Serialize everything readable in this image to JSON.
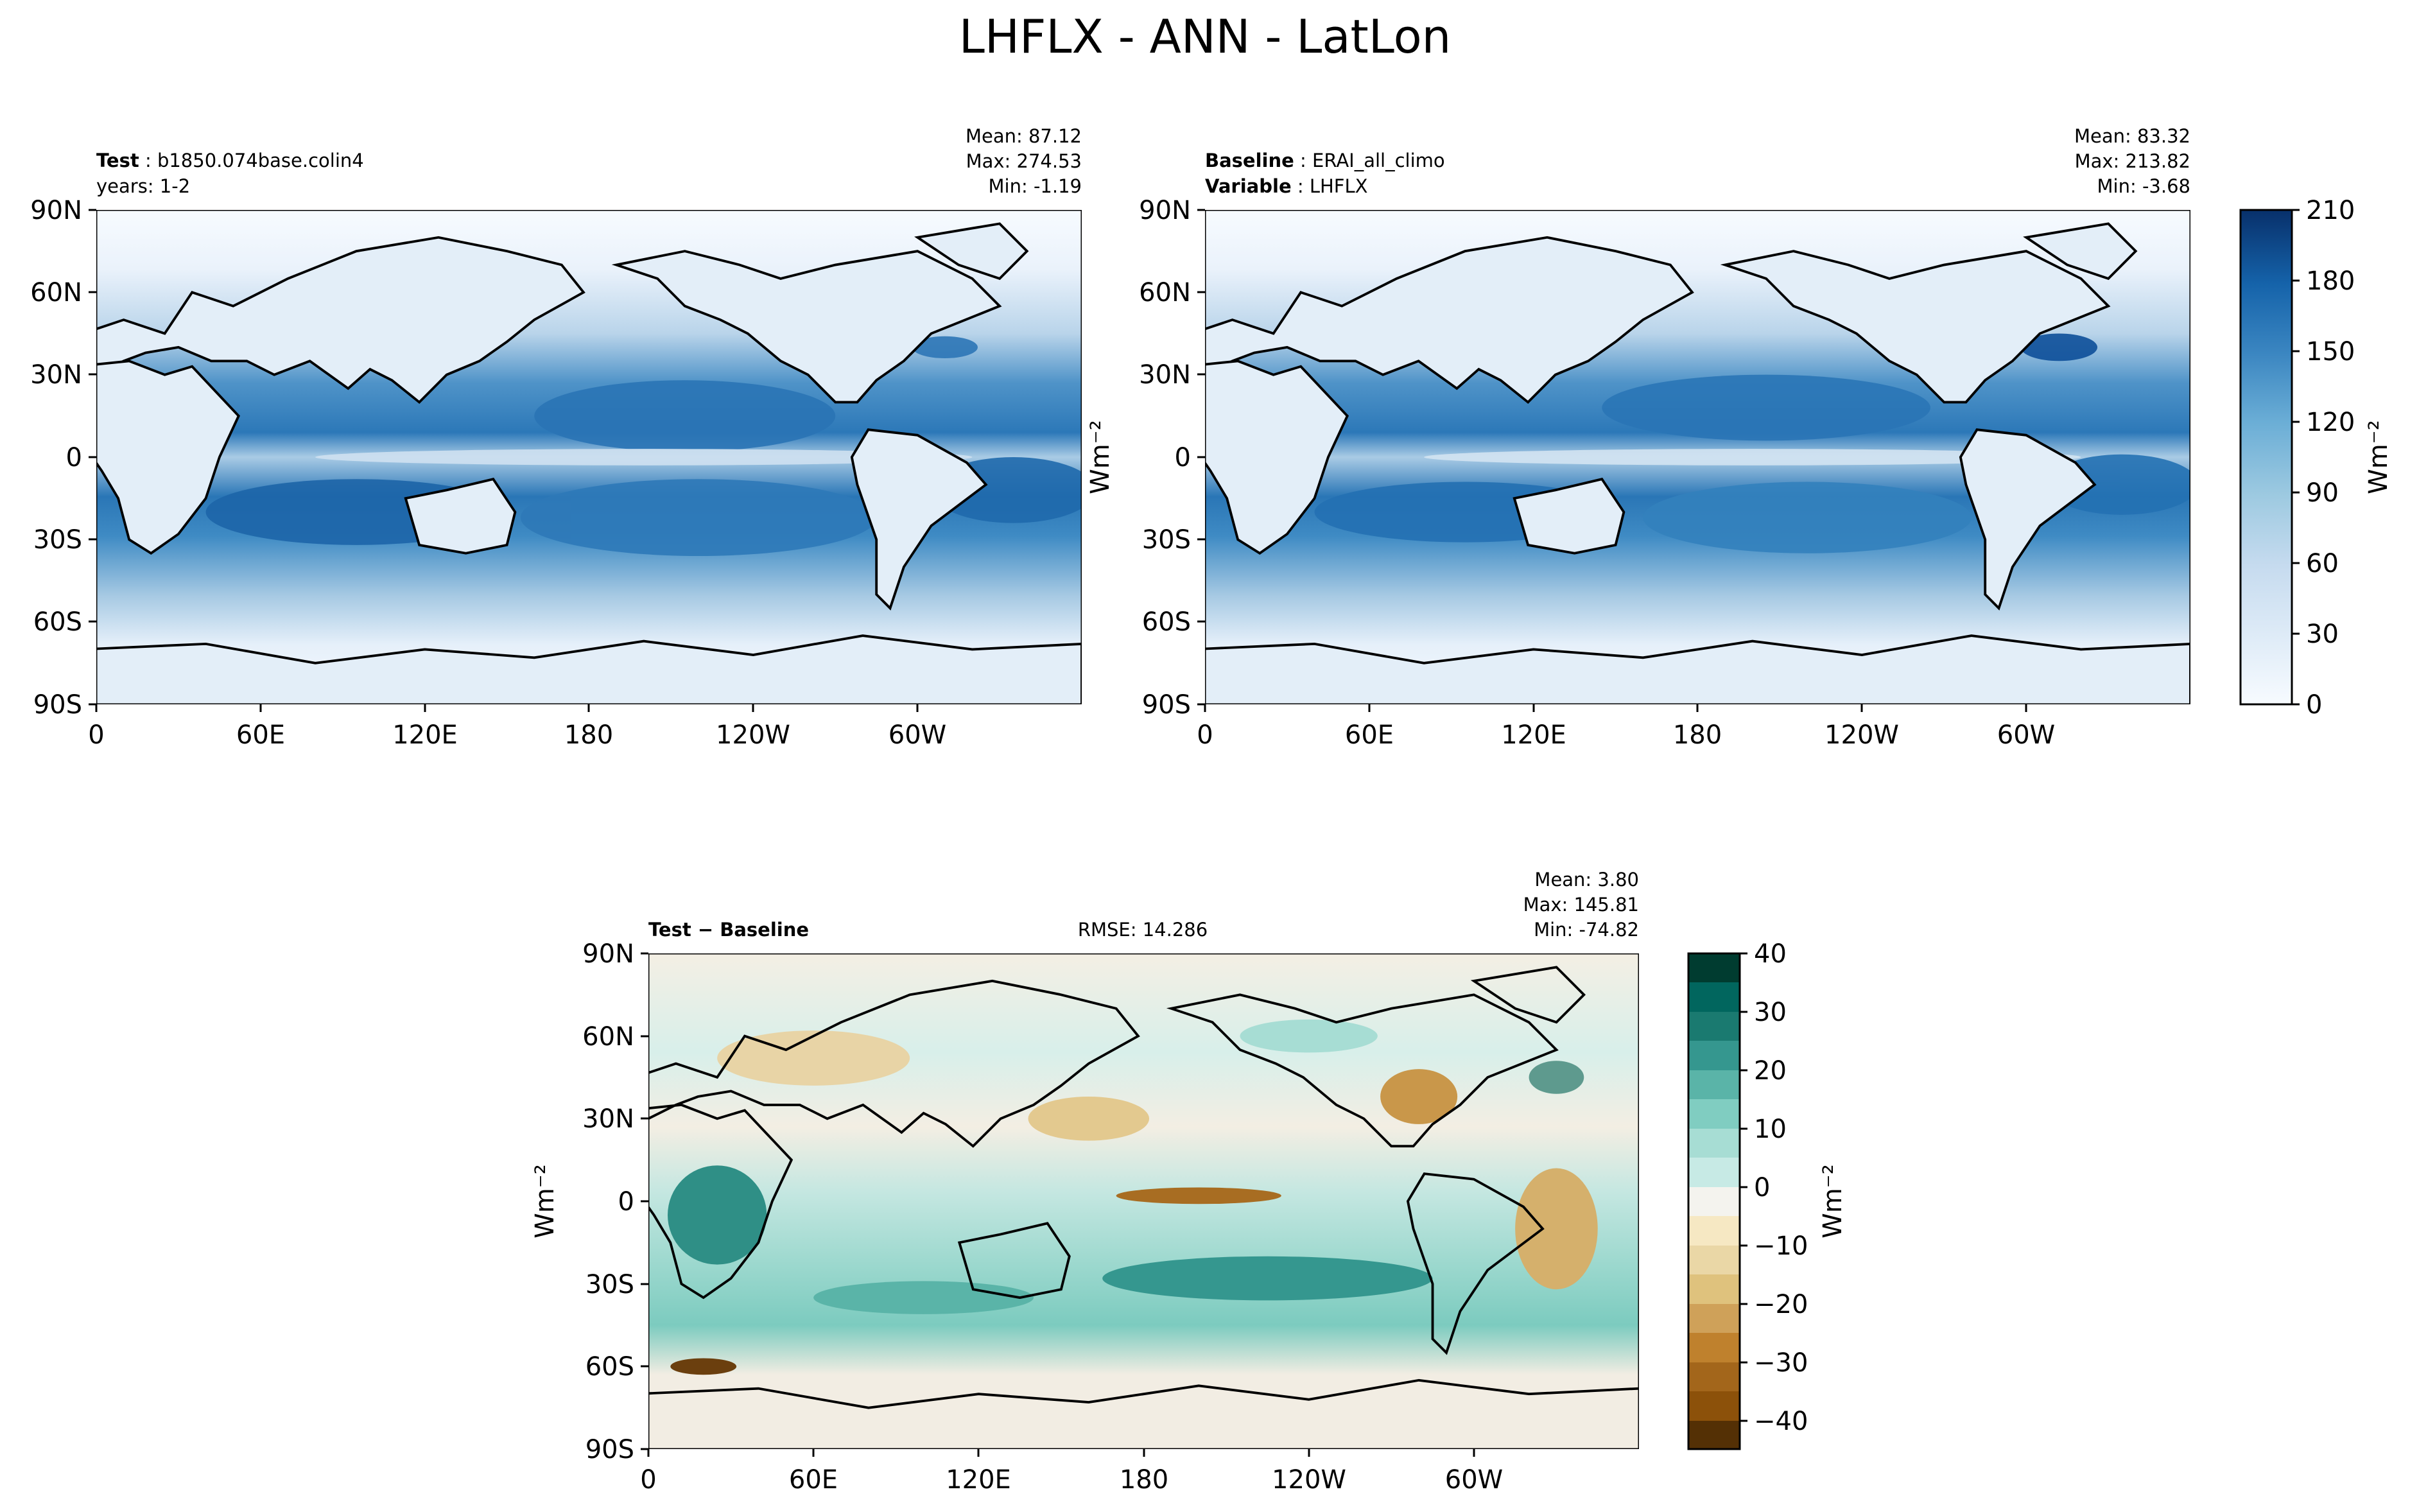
{
  "chart_data": {
    "type": "heatmap",
    "title": "LHFLX - ANN - LatLon",
    "x_tick_labels": [
      "0",
      "60E",
      "120E",
      "180",
      "120W",
      "60W"
    ],
    "y_tick_labels": [
      "90N",
      "60N",
      "30N",
      "0",
      "30S",
      "60S",
      "90S"
    ],
    "xlim": [
      0,
      360
    ],
    "ylim": [
      -90,
      90
    ],
    "panels": [
      {
        "id": "test",
        "left_lines": [
          {
            "bold": "Test",
            "sep": " : ",
            "text": "b1850.074base.colin4"
          },
          {
            "bold": "",
            "sep": "",
            "text": "years: 1-2"
          }
        ],
        "center_text": "",
        "stats": [
          "Mean: 87.12",
          "Max: 274.53",
          "Min: -1.19"
        ],
        "ylabel": "",
        "colormap": "Blues",
        "colorbar": null
      },
      {
        "id": "baseline",
        "left_lines": [
          {
            "bold": "Baseline",
            "sep": " : ",
            "text": "ERAI_all_climo"
          },
          {
            "bold": "Variable",
            "sep": " : ",
            "text": "LHFLX"
          }
        ],
        "center_text": "",
        "stats": [
          "Mean: 83.32",
          "Max: 213.82",
          "Min: -3.68"
        ],
        "ylabel": "Wm⁻²",
        "colormap": "Blues",
        "colorbar": {
          "ticks": [
            "210",
            "180",
            "150",
            "120",
            "90",
            "60",
            "30",
            "0"
          ],
          "range": [
            0,
            210
          ],
          "label": "Wm⁻²"
        }
      },
      {
        "id": "diff",
        "left_lines": [
          {
            "bold": "Test − Baseline",
            "sep": "",
            "text": ""
          }
        ],
        "center_text": "RMSE: 14.286",
        "stats": [
          "Mean:  3.80",
          "Max: 145.81",
          "Min: -74.82"
        ],
        "ylabel": "Wm⁻²",
        "colormap": "BrBG",
        "colorbar": {
          "ticks": [
            "40",
            "30",
            "20",
            "10",
            "0",
            "−10",
            "−20",
            "−30",
            "−40"
          ],
          "range": [
            -45,
            40
          ],
          "label": "Wm⁻²"
        }
      }
    ]
  },
  "colors": {
    "blues": [
      "#f7fbff",
      "#deebf7",
      "#c6dbef",
      "#9ecae1",
      "#6baed6",
      "#4292c6",
      "#2171b5",
      "#08519c",
      "#08306b"
    ],
    "brbg": [
      "#543005",
      "#8c510a",
      "#bf812d",
      "#dfc27d",
      "#f6e8c3",
      "#f5f5f5",
      "#c7eae5",
      "#80cdc1",
      "#35978f",
      "#01665e",
      "#003c30"
    ],
    "coast": "#000000"
  }
}
